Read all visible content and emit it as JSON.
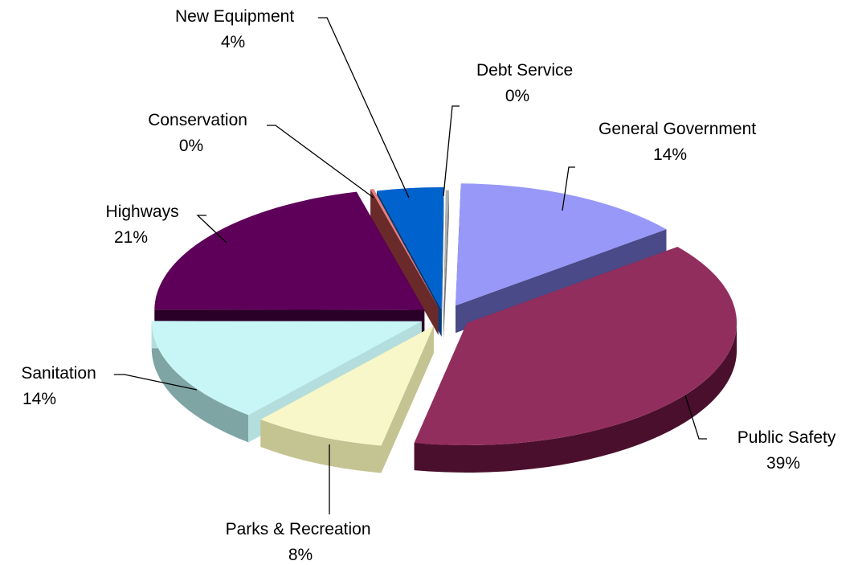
{
  "chart_data": {
    "type": "pie",
    "title": "",
    "slices": [
      {
        "name": "General Government",
        "value": 14,
        "label_pct": "14%",
        "top_color": "#9898F8",
        "side_color": "#4A4A88",
        "edge_color": "#4A4A88"
      },
      {
        "name": "Public Safety",
        "value": 39,
        "label_pct": "39%",
        "top_color": "#922E5E",
        "side_color": "#4A0F2C",
        "edge_color": "#4A0F2C"
      },
      {
        "name": "Parks & Recreation",
        "value": 8,
        "label_pct": "8%",
        "top_color": "#F7F7C9",
        "side_color": "#C4C392",
        "edge_color": "#C4C392"
      },
      {
        "name": "Sanitation",
        "value": 14,
        "label_pct": "14%",
        "top_color": "#C8F5F5",
        "side_color": "#7FA4A4",
        "edge_color": "#B4DEDE"
      },
      {
        "name": "Highways",
        "value": 21,
        "label_pct": "21%",
        "top_color": "#5E0059",
        "side_color": "#2A0028",
        "edge_color": "#2A0028"
      },
      {
        "name": "Conservation",
        "value": 0,
        "label_pct": "0%",
        "top_color": "#E48080",
        "side_color": "#6B2A2A",
        "edge_color": "#6B2A2A"
      },
      {
        "name": "New Equipment",
        "value": 4,
        "label_pct": "4%",
        "top_color": "#0062CC",
        "side_color": "#003C80",
        "edge_color": "#003C80"
      },
      {
        "name": "Debt Service",
        "value": 0,
        "label_pct": "0%",
        "top_color": "#B0B0B0",
        "side_color": "#707070",
        "edge_color": "#707070"
      }
    ],
    "legend": "none",
    "style": "3d-exploded-pie"
  }
}
